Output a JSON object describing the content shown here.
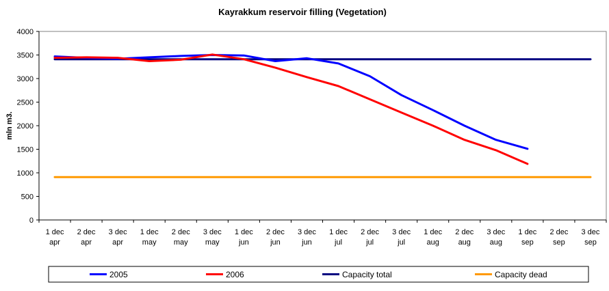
{
  "chart_data": {
    "type": "line",
    "title": "Kayrakkum reservoir filling  (Vegetation)",
    "ylabel": "mln m3.",
    "xlabel": "",
    "ylim": [
      0,
      4000
    ],
    "yticks": [
      0,
      500,
      1000,
      1500,
      2000,
      2500,
      3000,
      3500,
      4000
    ],
    "grid": true,
    "legend_position": "bottom",
    "categories": [
      [
        "1 dec",
        "apr"
      ],
      [
        "2 dec",
        "apr"
      ],
      [
        "3 dec",
        "apr"
      ],
      [
        "1 dec",
        "may"
      ],
      [
        "2 dec",
        "may"
      ],
      [
        "3 dec",
        "may"
      ],
      [
        "1 dec",
        "jun"
      ],
      [
        "2 dec",
        "jun"
      ],
      [
        "3 dec",
        "jun"
      ],
      [
        "1 dec",
        "jul"
      ],
      [
        "2 dec",
        "jul"
      ],
      [
        "3 dec",
        "jul"
      ],
      [
        "1 dec",
        "aug"
      ],
      [
        "2 dec",
        "aug"
      ],
      [
        "3 dec",
        "aug"
      ],
      [
        "1 dec",
        "sep"
      ],
      [
        "2 dec",
        "sep"
      ],
      [
        "3 dec",
        "sep"
      ]
    ],
    "series": [
      {
        "name": "2005",
        "color": "#0000ff",
        "values": [
          3470,
          3440,
          3420,
          3450,
          3480,
          3500,
          3490,
          3370,
          3430,
          3320,
          3050,
          2650,
          2330,
          2000,
          1700,
          1510,
          null,
          null
        ]
      },
      {
        "name": "2006",
        "color": "#ff0000",
        "values": [
          3440,
          3450,
          3440,
          3370,
          3400,
          3510,
          3410,
          3230,
          3030,
          2840,
          2560,
          2280,
          2000,
          1700,
          1480,
          1190,
          null,
          null
        ]
      },
      {
        "name": "Capacity total",
        "color": "#000080",
        "values": [
          3410,
          3410,
          3410,
          3410,
          3410,
          3410,
          3410,
          3410,
          3410,
          3410,
          3410,
          3410,
          3410,
          3410,
          3410,
          3410,
          3410,
          3410
        ]
      },
      {
        "name": "Capacity dead",
        "color": "#ff9900",
        "values": [
          910,
          910,
          910,
          910,
          910,
          910,
          910,
          910,
          910,
          910,
          910,
          910,
          910,
          910,
          910,
          910,
          910,
          910
        ]
      }
    ]
  }
}
